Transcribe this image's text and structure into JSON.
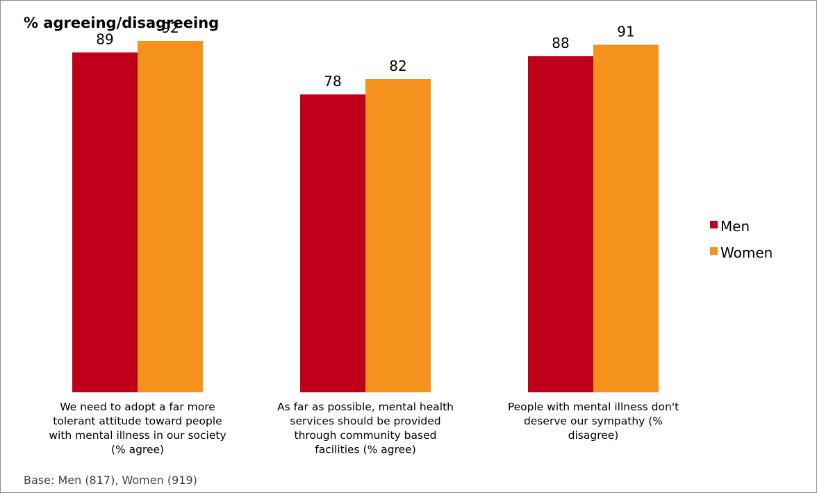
{
  "chart_data": {
    "type": "bar",
    "title": "% agreeing/disagreeing",
    "categories": [
      [
        "We need to adopt a far more",
        "tolerant attitude toward people",
        "with mental illness in our society",
        "(% agree)"
      ],
      [
        "As far as possible, mental health",
        "services should be provided",
        "through community based",
        "facilities (% agree)"
      ],
      [
        "People with mental illness don't",
        "deserve our sympathy (%",
        "disagree)"
      ]
    ],
    "series": [
      {
        "name": "Men",
        "color": "#c0001a",
        "values": [
          89,
          78,
          88
        ]
      },
      {
        "name": "Women",
        "color": "#f5921e",
        "values": [
          92,
          82,
          91
        ]
      }
    ],
    "ylim": [
      0,
      100
    ],
    "grid": false,
    "legend_position": "right",
    "data_labels": true
  },
  "footnote": "Base: Men (817), Women (919)"
}
